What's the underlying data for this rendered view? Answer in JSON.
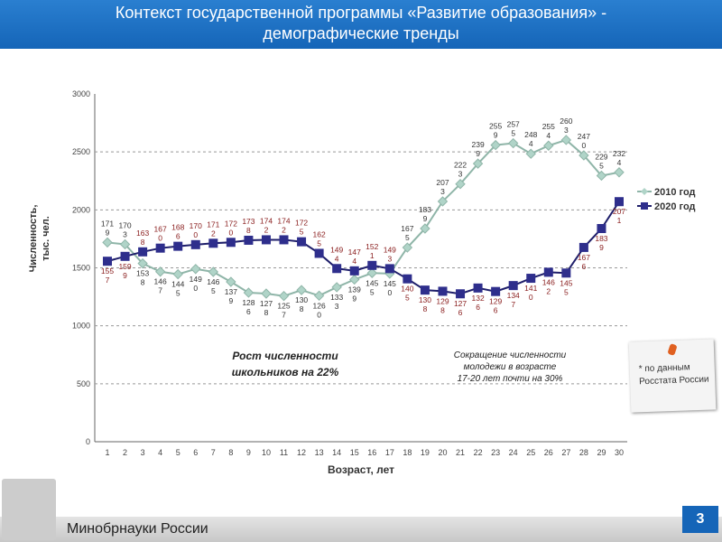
{
  "slide": {
    "title_line1": "Контекст государственной программы «Развитие образования» -",
    "title_line2": "демографические тренды",
    "footer": "Минобрнауки России",
    "page_number": "3",
    "note": "* по данным Росстата России",
    "colors": {
      "title_bar": "#1565b8",
      "series_2010": "#b0d4c8",
      "series_2020": "#2e2e8c"
    }
  },
  "chart_data": {
    "type": "line",
    "title": "",
    "xlabel": "Возраст, лет",
    "ylabel": "Численность, тыс. чел.",
    "ylim": [
      0,
      3000
    ],
    "yticks": [
      0,
      500,
      1000,
      1500,
      2000,
      2500,
      3000
    ],
    "grid": "horizontal dashed",
    "legend_position": "right",
    "x": [
      1,
      2,
      3,
      4,
      5,
      6,
      7,
      8,
      9,
      10,
      11,
      12,
      13,
      14,
      15,
      16,
      17,
      18,
      19,
      20,
      21,
      22,
      23,
      24,
      25,
      26,
      27,
      28,
      29,
      30
    ],
    "series": [
      {
        "name": "2010 год",
        "values": [
          1719,
          1703,
          1538,
          1467,
          1445,
          1490,
          1465,
          1379,
          1286,
          1278,
          1257,
          1308,
          1260,
          1333,
          1399,
          1455,
          1450,
          1675,
          1839,
          2073,
          2223,
          2399,
          2559,
          2575,
          2484,
          2554,
          2603,
          2470,
          2295,
          2324
        ]
      },
      {
        "name": "2020 год",
        "values": [
          1557,
          1599,
          1638,
          1670,
          1686,
          1700,
          1712,
          1720,
          1738,
          1742,
          1742,
          1725,
          1625,
          1494,
          1474,
          1521,
          1493,
          1405,
          1308,
          1298,
          1276,
          1326,
          1296,
          1347,
          1410,
          1462,
          1455,
          1676,
          1839,
          2071
        ]
      }
    ],
    "annotations": [
      "Рост численности школьников на 22%",
      "Сокращение численности молодежи в возрасте 17-20 лет почти на 30%"
    ]
  }
}
